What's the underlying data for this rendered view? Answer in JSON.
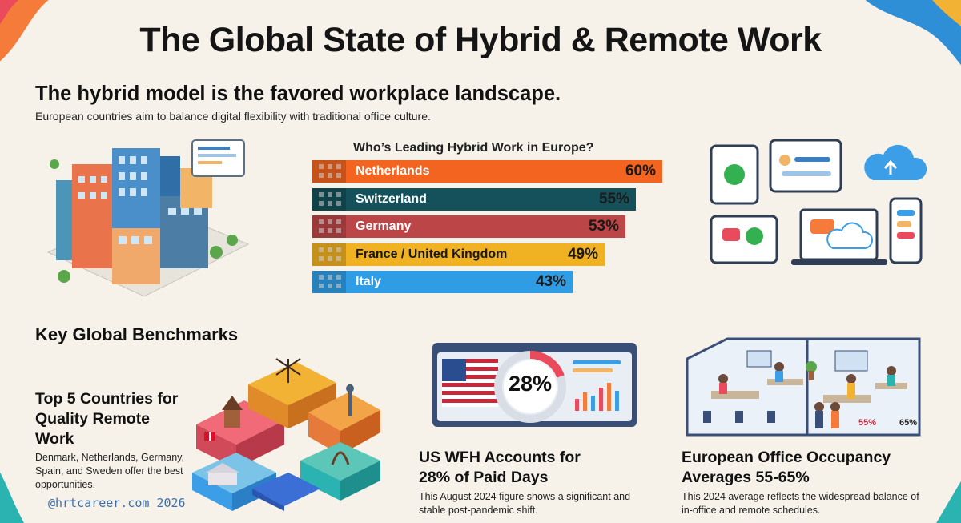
{
  "title": "The Global State of Hybrid & Remote Work",
  "intro": {
    "heading": "The hybrid model is the favored workplace landscape.",
    "text": "European countries aim to balance digital flexibility with traditional office culture."
  },
  "chart_data": {
    "type": "bar",
    "title": "Who’s Leading Hybrid Work in Europe?",
    "categories": [
      "Netherlands",
      "Switzerland",
      "Germany",
      "France / United Kingdom",
      "Italy"
    ],
    "values": [
      60,
      55,
      53,
      49,
      43
    ],
    "value_labels": [
      "60%",
      "55%",
      "53%",
      "49%",
      "43%"
    ],
    "colors": [
      "#f2641f",
      "#14515a",
      "#bb4547",
      "#f0b122",
      "#2f9de6"
    ],
    "text_colors": [
      "#ffffff",
      "#ffffff",
      "#ffffff",
      "#1a1a1a",
      "#ffffff"
    ],
    "value_colors": [
      "#1a1a1a",
      "#1a1a1a",
      "#1a1a1a",
      "#1a1a1a",
      "#1a1a1a"
    ],
    "orientation": "horizontal",
    "ylim": [
      0,
      60
    ]
  },
  "benchmarks": {
    "heading": "Key Global Benchmarks",
    "cards": [
      {
        "title": "Top 5 Countries for Quality Remote Work",
        "text": "Denmark, Netherlands, Germany, Spain, and Sweden offer the best opportunities."
      },
      {
        "badge": "28%",
        "title": "US WFH Accounts for 28% of Paid Days",
        "text": "This August 2024 figure shows a significant and stable post-pandemic shift."
      },
      {
        "labels": [
          "55%",
          "65%"
        ],
        "title": "European Office Occupancy Averages 55-65%",
        "text": "This 2024 average reflects the widespread balance of in-office and remote schedules."
      }
    ]
  },
  "watermark": "@hrtcareer.com 2026"
}
